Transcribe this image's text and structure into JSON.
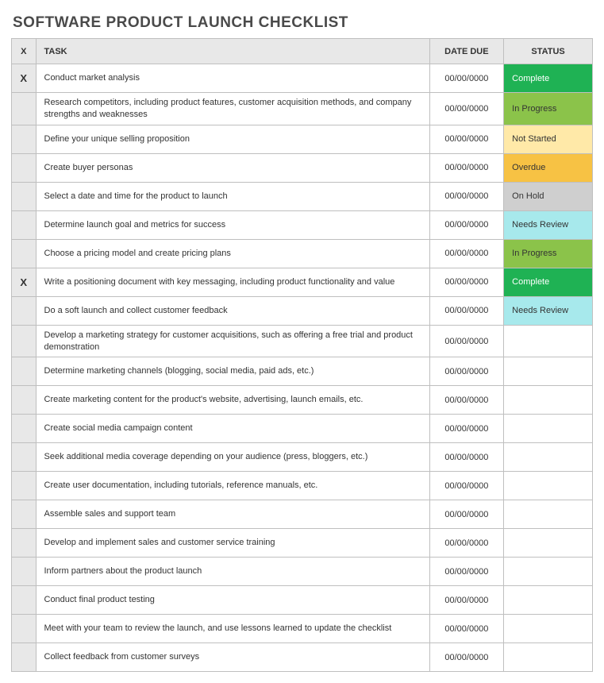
{
  "title": "SOFTWARE PRODUCT LAUNCH CHECKLIST",
  "columns": {
    "check": "X",
    "task": "TASK",
    "date": "DATE DUE",
    "status": "STATUS"
  },
  "status_colors": {
    "Complete": {
      "bg": "#1fb254",
      "fg": "#ffffff"
    },
    "In Progress": {
      "bg": "#8bc34a",
      "fg": "#333333"
    },
    "Not Started": {
      "bg": "#ffe9a8",
      "fg": "#333333"
    },
    "Overdue": {
      "bg": "#f7c244",
      "fg": "#333333"
    },
    "On Hold": {
      "bg": "#cfcfcf",
      "fg": "#333333"
    },
    "Needs Review": {
      "bg": "#a7e9ec",
      "fg": "#333333"
    },
    "": {
      "bg": "#ffffff",
      "fg": "#333333"
    }
  },
  "rows": [
    {
      "check": "X",
      "task": "Conduct market analysis",
      "date": "00/00/0000",
      "status": "Complete"
    },
    {
      "check": "",
      "task": "Research competitors, including product features, customer acquisition methods, and company strengths and weaknesses",
      "date": "00/00/0000",
      "status": "In Progress"
    },
    {
      "check": "",
      "task": "Define your unique selling proposition",
      "date": "00/00/0000",
      "status": "Not Started"
    },
    {
      "check": "",
      "task": "Create buyer personas",
      "date": "00/00/0000",
      "status": "Overdue"
    },
    {
      "check": "",
      "task": "Select a date and time for the product to launch",
      "date": "00/00/0000",
      "status": "On Hold"
    },
    {
      "check": "",
      "task": "Determine launch goal and metrics for success",
      "date": "00/00/0000",
      "status": "Needs Review"
    },
    {
      "check": "",
      "task": "Choose a pricing model and create pricing plans",
      "date": "00/00/0000",
      "status": "In Progress"
    },
    {
      "check": "X",
      "task": "Write a positioning document with key messaging, including product functionality and value",
      "date": "00/00/0000",
      "status": "Complete"
    },
    {
      "check": "",
      "task": "Do a soft launch and collect customer feedback",
      "date": "00/00/0000",
      "status": "Needs Review"
    },
    {
      "check": "",
      "task": "Develop a marketing strategy for customer acquisitions, such as offering a free trial and product demonstration",
      "date": "00/00/0000",
      "status": ""
    },
    {
      "check": "",
      "task": "Determine marketing channels (blogging, social media, paid ads, etc.)",
      "date": "00/00/0000",
      "status": ""
    },
    {
      "check": "",
      "task": "Create marketing content for the product's website, advertising, launch emails, etc.",
      "date": "00/00/0000",
      "status": ""
    },
    {
      "check": "",
      "task": "Create social media campaign content",
      "date": "00/00/0000",
      "status": ""
    },
    {
      "check": "",
      "task": "Seek additional media coverage depending on your audience (press, bloggers, etc.)",
      "date": "00/00/0000",
      "status": ""
    },
    {
      "check": "",
      "task": "Create user documentation, including tutorials, reference manuals, etc.",
      "date": "00/00/0000",
      "status": ""
    },
    {
      "check": "",
      "task": "Assemble sales and support team",
      "date": "00/00/0000",
      "status": ""
    },
    {
      "check": "",
      "task": "Develop and implement sales and customer service training",
      "date": "00/00/0000",
      "status": ""
    },
    {
      "check": "",
      "task": "Inform partners about the product launch",
      "date": "00/00/0000",
      "status": ""
    },
    {
      "check": "",
      "task": "Conduct final product testing",
      "date": "00/00/0000",
      "status": ""
    },
    {
      "check": "",
      "task": "Meet with your team to review the launch, and use lessons learned to update the checklist",
      "date": "00/00/0000",
      "status": ""
    },
    {
      "check": "",
      "task": "Collect feedback from customer surveys",
      "date": "00/00/0000",
      "status": ""
    }
  ]
}
